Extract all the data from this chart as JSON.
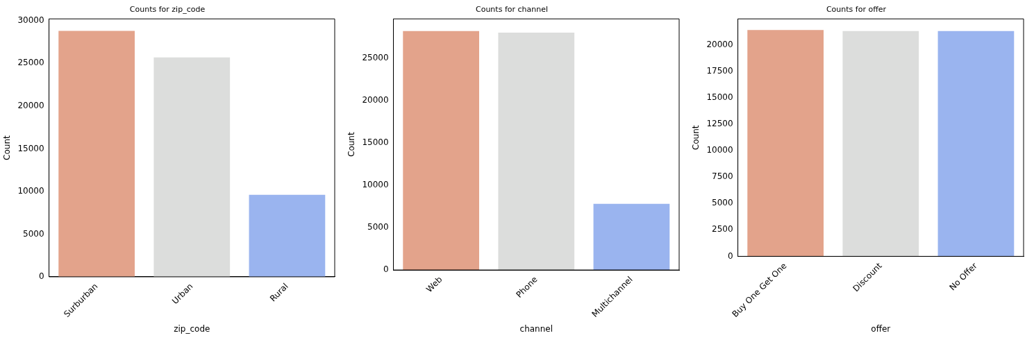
{
  "chart_data": [
    {
      "type": "bar",
      "title": "Counts for zip_code",
      "xlabel": "zip_code",
      "ylabel": "Count",
      "categories": [
        "Surburban",
        "Urban",
        "Rural"
      ],
      "values": [
        28800,
        25700,
        9600
      ],
      "colors": [
        "#e3a38b",
        "#dcdddc",
        "#9ab4ef"
      ],
      "ylim": [
        0,
        30215
      ],
      "yticks": [
        0,
        5000,
        10000,
        15000,
        20000,
        25000,
        30000
      ],
      "grid": false
    },
    {
      "type": "bar",
      "title": "Counts for channel",
      "xlabel": "channel",
      "ylabel": "Count",
      "categories": [
        "Web",
        "Phone",
        "Multichannel"
      ],
      "values": [
        28200,
        28000,
        7800
      ],
      "colors": [
        "#e3a38b",
        "#dcdddc",
        "#9ab4ef"
      ],
      "ylim": [
        0,
        29628
      ],
      "yticks": [
        0,
        5000,
        10000,
        15000,
        20000,
        25000
      ],
      "grid": false
    },
    {
      "type": "bar",
      "title": "Counts for offer",
      "xlabel": "offer",
      "ylabel": "Count",
      "categories": [
        "Buy One Get One",
        "Discount",
        "No Offer"
      ],
      "values": [
        21400,
        21300,
        21300
      ],
      "colors": [
        "#e3a38b",
        "#dcdddc",
        "#9ab4ef"
      ],
      "ylim": [
        0,
        22456
      ],
      "yticks": [
        0,
        2500,
        5000,
        7500,
        10000,
        12500,
        15000,
        17500,
        20000
      ],
      "grid": false
    }
  ]
}
